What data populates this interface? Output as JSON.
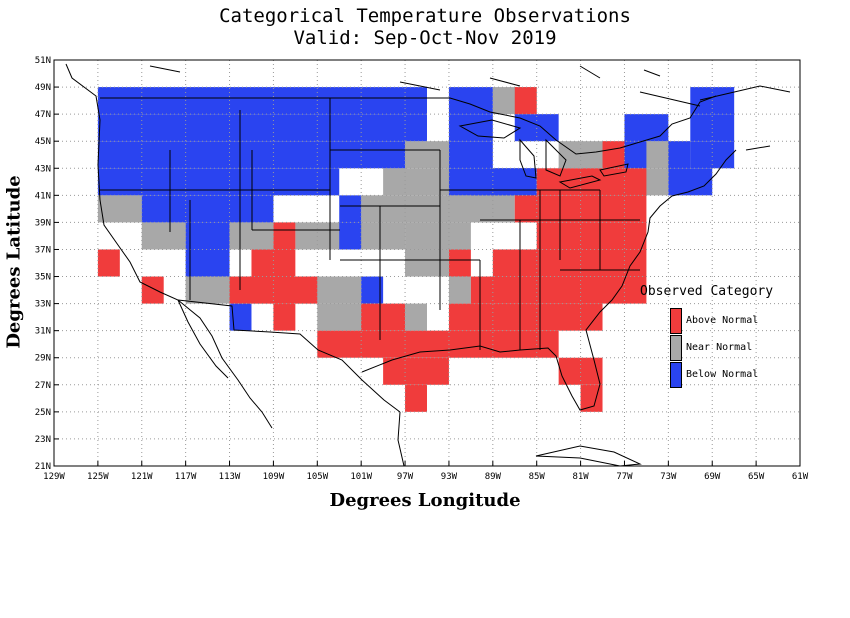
{
  "title": "Categorical Temperature Observations",
  "subtitle": "Valid: Sep-Oct-Nov 2019",
  "xlabel": "Degrees Longitude",
  "ylabel": "Degrees Latitude",
  "x_ticks": [
    "129W",
    "125W",
    "121W",
    "117W",
    "113W",
    "109W",
    "105W",
    "101W",
    "97W",
    "93W",
    "89W",
    "85W",
    "81W",
    "77W",
    "73W",
    "69W",
    "65W",
    "61W"
  ],
  "y_ticks": [
    "21N",
    "23N",
    "25N",
    "27N",
    "29N",
    "31N",
    "33N",
    "35N",
    "37N",
    "39N",
    "41N",
    "43N",
    "45N",
    "47N",
    "49N",
    "51N"
  ],
  "legend": {
    "title": "Observed Category",
    "items": [
      {
        "label": "Above Normal",
        "color": "#f03c3c"
      },
      {
        "label": "Near Normal",
        "color": "#a8a8a8"
      },
      {
        "label": "Below Normal",
        "color": "#2a44f0"
      }
    ]
  },
  "chart_data": {
    "type": "heatmap",
    "description_of_grid": "2-degree grid cells over the contiguous US; keys are categories, rows are [west_lon, south_lat, east_lon] spans in degrees (west negative)",
    "xlim": [
      -129,
      -61
    ],
    "ylim": [
      21,
      51
    ],
    "grid": true,
    "legend_position": "right",
    "cells": {
      "below": [
        [
          -125,
          47,
          -95
        ],
        [
          -125,
          45,
          -95
        ],
        [
          -125,
          43,
          -97
        ],
        [
          -125,
          41,
          -103
        ],
        [
          -121,
          39,
          -109
        ],
        [
          -117,
          37,
          -113
        ],
        [
          -117,
          35,
          -113
        ],
        [
          -93,
          47,
          -89
        ],
        [
          -93,
          45,
          -89
        ],
        [
          -87,
          45,
          -83
        ],
        [
          -93,
          43,
          -89
        ],
        [
          -91,
          41,
          -85
        ],
        [
          -93,
          41,
          -85
        ],
        [
          -77,
          45,
          -73
        ],
        [
          -77,
          43,
          -75
        ],
        [
          -73,
          43,
          -71
        ],
        [
          -73,
          41,
          -69
        ],
        [
          -71,
          47,
          -67
        ],
        [
          -71,
          45,
          -67
        ],
        [
          -71,
          43,
          -67
        ],
        [
          -103,
          39,
          -101
        ],
        [
          -103,
          37,
          -101
        ],
        [
          -101,
          33,
          -99
        ],
        [
          -113,
          31,
          -111
        ]
      ],
      "near": [
        [
          -125,
          39,
          -121
        ],
        [
          -121,
          37,
          -117
        ],
        [
          -113,
          37,
          -109
        ],
        [
          -107,
          37,
          -97
        ],
        [
          -117,
          33,
          -107
        ],
        [
          -107,
          33,
          -101
        ],
        [
          -105,
          31,
          -99
        ],
        [
          -97,
          43,
          -93
        ],
        [
          -99,
          41,
          -85
        ],
        [
          -101,
          39,
          -87
        ],
        [
          -97,
          37,
          -91
        ],
        [
          -97,
          35,
          -93
        ],
        [
          -89,
          47,
          -85
        ],
        [
          -83,
          43,
          -71
        ],
        [
          -81,
          41,
          -73
        ],
        [
          -93,
          33,
          -91
        ],
        [
          -97,
          31,
          -95
        ]
      ],
      "above": [
        [
          -125,
          35,
          -123
        ],
        [
          -121,
          33,
          -119
        ],
        [
          -109,
          37,
          -107
        ],
        [
          -111,
          35,
          -107
        ],
        [
          -113,
          33,
          -105
        ],
        [
          -109,
          31,
          -107
        ],
        [
          -101,
          31,
          -97
        ],
        [
          -105,
          29,
          -83
        ],
        [
          -99,
          27,
          -93
        ],
        [
          -97,
          25,
          -95
        ],
        [
          -93,
          35,
          -91
        ],
        [
          -91,
          33,
          -75
        ],
        [
          -89,
          35,
          -75
        ],
        [
          -85,
          37,
          -75
        ],
        [
          -87,
          39,
          -75
        ],
        [
          -85,
          41,
          -75
        ],
        [
          -79,
          43,
          -77
        ],
        [
          -87,
          47,
          -85
        ],
        [
          -93,
          31,
          -79
        ],
        [
          -83,
          27,
          -79
        ],
        [
          -81,
          25,
          -79
        ]
      ]
    }
  }
}
